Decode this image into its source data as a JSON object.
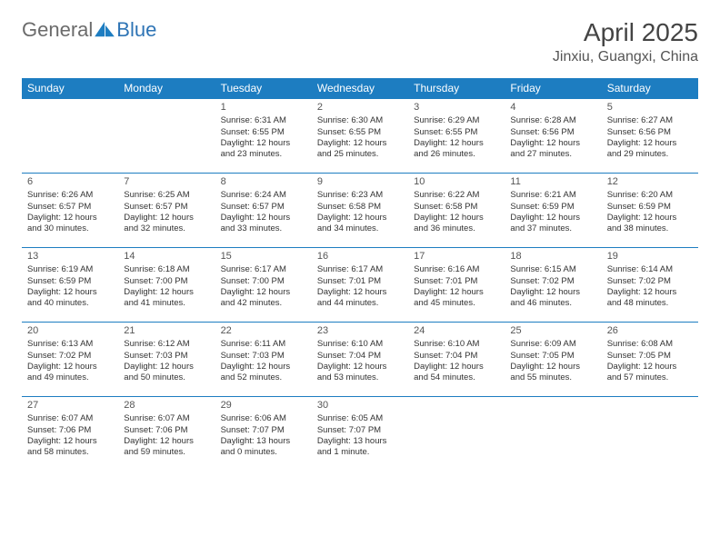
{
  "logo": {
    "text1": "General",
    "text2": "Blue"
  },
  "header": {
    "month_title": "April 2025",
    "location": "Jinxiu, Guangxi, China"
  },
  "colors": {
    "header_bg": "#1d7dc1",
    "header_text": "#ffffff",
    "border": "#1d7dc1",
    "body_text": "#333333",
    "logo_general": "#6b6b6b",
    "logo_blue": "#2e74b5"
  },
  "calendar": {
    "day_headers": [
      "Sunday",
      "Monday",
      "Tuesday",
      "Wednesday",
      "Thursday",
      "Friday",
      "Saturday"
    ],
    "first_weekday": 2,
    "days": [
      {
        "n": 1,
        "sunrise": "6:31 AM",
        "sunset": "6:55 PM",
        "daylight": "12 hours and 23 minutes."
      },
      {
        "n": 2,
        "sunrise": "6:30 AM",
        "sunset": "6:55 PM",
        "daylight": "12 hours and 25 minutes."
      },
      {
        "n": 3,
        "sunrise": "6:29 AM",
        "sunset": "6:55 PM",
        "daylight": "12 hours and 26 minutes."
      },
      {
        "n": 4,
        "sunrise": "6:28 AM",
        "sunset": "6:56 PM",
        "daylight": "12 hours and 27 minutes."
      },
      {
        "n": 5,
        "sunrise": "6:27 AM",
        "sunset": "6:56 PM",
        "daylight": "12 hours and 29 minutes."
      },
      {
        "n": 6,
        "sunrise": "6:26 AM",
        "sunset": "6:57 PM",
        "daylight": "12 hours and 30 minutes."
      },
      {
        "n": 7,
        "sunrise": "6:25 AM",
        "sunset": "6:57 PM",
        "daylight": "12 hours and 32 minutes."
      },
      {
        "n": 8,
        "sunrise": "6:24 AM",
        "sunset": "6:57 PM",
        "daylight": "12 hours and 33 minutes."
      },
      {
        "n": 9,
        "sunrise": "6:23 AM",
        "sunset": "6:58 PM",
        "daylight": "12 hours and 34 minutes."
      },
      {
        "n": 10,
        "sunrise": "6:22 AM",
        "sunset": "6:58 PM",
        "daylight": "12 hours and 36 minutes."
      },
      {
        "n": 11,
        "sunrise": "6:21 AM",
        "sunset": "6:59 PM",
        "daylight": "12 hours and 37 minutes."
      },
      {
        "n": 12,
        "sunrise": "6:20 AM",
        "sunset": "6:59 PM",
        "daylight": "12 hours and 38 minutes."
      },
      {
        "n": 13,
        "sunrise": "6:19 AM",
        "sunset": "6:59 PM",
        "daylight": "12 hours and 40 minutes."
      },
      {
        "n": 14,
        "sunrise": "6:18 AM",
        "sunset": "7:00 PM",
        "daylight": "12 hours and 41 minutes."
      },
      {
        "n": 15,
        "sunrise": "6:17 AM",
        "sunset": "7:00 PM",
        "daylight": "12 hours and 42 minutes."
      },
      {
        "n": 16,
        "sunrise": "6:17 AM",
        "sunset": "7:01 PM",
        "daylight": "12 hours and 44 minutes."
      },
      {
        "n": 17,
        "sunrise": "6:16 AM",
        "sunset": "7:01 PM",
        "daylight": "12 hours and 45 minutes."
      },
      {
        "n": 18,
        "sunrise": "6:15 AM",
        "sunset": "7:02 PM",
        "daylight": "12 hours and 46 minutes."
      },
      {
        "n": 19,
        "sunrise": "6:14 AM",
        "sunset": "7:02 PM",
        "daylight": "12 hours and 48 minutes."
      },
      {
        "n": 20,
        "sunrise": "6:13 AM",
        "sunset": "7:02 PM",
        "daylight": "12 hours and 49 minutes."
      },
      {
        "n": 21,
        "sunrise": "6:12 AM",
        "sunset": "7:03 PM",
        "daylight": "12 hours and 50 minutes."
      },
      {
        "n": 22,
        "sunrise": "6:11 AM",
        "sunset": "7:03 PM",
        "daylight": "12 hours and 52 minutes."
      },
      {
        "n": 23,
        "sunrise": "6:10 AM",
        "sunset": "7:04 PM",
        "daylight": "12 hours and 53 minutes."
      },
      {
        "n": 24,
        "sunrise": "6:10 AM",
        "sunset": "7:04 PM",
        "daylight": "12 hours and 54 minutes."
      },
      {
        "n": 25,
        "sunrise": "6:09 AM",
        "sunset": "7:05 PM",
        "daylight": "12 hours and 55 minutes."
      },
      {
        "n": 26,
        "sunrise": "6:08 AM",
        "sunset": "7:05 PM",
        "daylight": "12 hours and 57 minutes."
      },
      {
        "n": 27,
        "sunrise": "6:07 AM",
        "sunset": "7:06 PM",
        "daylight": "12 hours and 58 minutes."
      },
      {
        "n": 28,
        "sunrise": "6:07 AM",
        "sunset": "7:06 PM",
        "daylight": "12 hours and 59 minutes."
      },
      {
        "n": 29,
        "sunrise": "6:06 AM",
        "sunset": "7:07 PM",
        "daylight": "13 hours and 0 minutes."
      },
      {
        "n": 30,
        "sunrise": "6:05 AM",
        "sunset": "7:07 PM",
        "daylight": "13 hours and 1 minute."
      }
    ],
    "labels": {
      "sunrise": "Sunrise:",
      "sunset": "Sunset:",
      "daylight": "Daylight:"
    }
  }
}
